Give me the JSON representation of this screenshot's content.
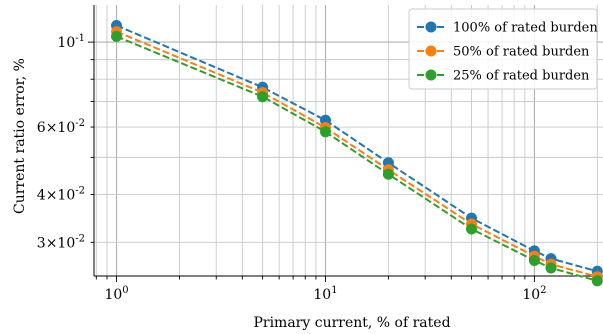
{
  "chart_data": {
    "type": "line",
    "xlabel": "Primary current, % of rated",
    "ylabel": "Current ratio error, %",
    "xscale": "log",
    "yscale": "log",
    "xlim": [
      0.78,
      230
    ],
    "ylim": [
      0.0245,
      0.125
    ],
    "grid": true,
    "legend_position": "top-right",
    "x": [
      1,
      5,
      10,
      20,
      50,
      100,
      120,
      200
    ],
    "x_ticks": [
      {
        "value": 1,
        "label": "10^0"
      },
      {
        "value": 10,
        "label": "10^1"
      },
      {
        "value": 100,
        "label": "10^2"
      }
    ],
    "y_ticks": [
      {
        "value": 0.1,
        "label": "10^-1"
      },
      {
        "value": 0.06,
        "label": "6×10^-2"
      },
      {
        "value": 0.04,
        "label": "4×10^-2"
      },
      {
        "value": 0.03,
        "label": "3×10^-2"
      }
    ],
    "series": [
      {
        "name": "100% of rated burden",
        "color": "#1f77b4",
        "values": [
          0.1105,
          0.0762,
          0.0625,
          0.0484,
          0.0347,
          0.0285,
          0.0272,
          0.0252
        ]
      },
      {
        "name": "50% of rated burden",
        "color": "#ff7f0e",
        "values": [
          0.1065,
          0.0738,
          0.0598,
          0.0464,
          0.0335,
          0.0276,
          0.0263,
          0.0244
        ]
      },
      {
        "name": "25% of rated burden",
        "color": "#2ca02c",
        "values": [
          0.1035,
          0.072,
          0.0583,
          0.0452,
          0.0325,
          0.0269,
          0.0257,
          0.0238
        ]
      }
    ]
  }
}
